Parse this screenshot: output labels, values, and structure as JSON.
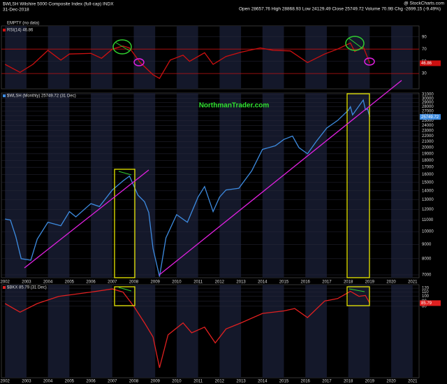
{
  "header": {
    "symbol": "$WLSH Wilshire 5000 Composite Index (full-cap) INDX",
    "date": "31-Dec-2018",
    "stats": "Open 28657.76 High 28868.93 Low 24129.49 Close 25749.72 Volume 70.9B Chg -2699.15 (-9.49%)",
    "credit": "@ StockCharts.com"
  },
  "chart_data": [
    {
      "type": "line",
      "legend": [
        "EMPTY (no data)"
      ],
      "ylim": [
        5,
        108
      ],
      "yticks": [
        90,
        70,
        50,
        30
      ],
      "ref_lines": [
        70,
        30
      ],
      "xlim": [
        2001.83,
        2021.3
      ],
      "last_label": "46.86",
      "x": [
        2002.0,
        2002.7,
        2003.3,
        2004.0,
        2004.6,
        2005.0,
        2006.0,
        2006.5,
        2007.0,
        2007.5,
        2007.8,
        2008.3,
        2008.9,
        2009.2,
        2009.7,
        2010.3,
        2010.6,
        2011.3,
        2011.7,
        2012.3,
        2013.0,
        2013.9,
        2014.5,
        2015.3,
        2016.1,
        2016.9,
        2017.5,
        2018.1,
        2018.3,
        2018.7,
        2019.0
      ],
      "series": [
        {
          "name": "RSI(14) 46.86",
          "color": "#cc1010",
          "values": [
            45,
            32,
            45,
            68,
            52,
            62,
            63,
            55,
            70,
            75,
            72,
            48,
            28,
            22,
            52,
            60,
            50,
            64,
            45,
            58,
            65,
            72,
            68,
            67,
            48,
            62,
            70,
            80,
            66,
            74,
            46.86
          ]
        }
      ]
    },
    {
      "type": "line",
      "log": true,
      "ylim": [
        6840,
        31360
      ],
      "xlim": [
        2001.83,
        2021.3
      ],
      "last_label": "25749.72",
      "yticks": [
        31000,
        30000,
        29000,
        28000,
        27000,
        26000,
        25000,
        24000,
        23000,
        22000,
        21000,
        20000,
        19000,
        18000,
        17000,
        16000,
        15000,
        14000,
        13000,
        12000,
        11000,
        10000,
        9000,
        8000,
        7000
      ],
      "xticks": [
        2002,
        2003,
        2004,
        2005,
        2006,
        2007,
        2008,
        2009,
        2010,
        2011,
        2012,
        2013,
        2014,
        2015,
        2016,
        2017,
        2018,
        2019,
        2020,
        2021
      ],
      "annotation": "NorthmanTrader.com",
      "x": [
        2002.0,
        2002.25,
        2002.5,
        2002.75,
        2003.2,
        2003.5,
        2004.0,
        2004.6,
        2005.0,
        2005.3,
        2006.0,
        2006.4,
        2007.0,
        2007.5,
        2007.8,
        2008.2,
        2008.5,
        2008.7,
        2008.9,
        2009.2,
        2009.5,
        2010.0,
        2010.5,
        2011.0,
        2011.3,
        2011.7,
        2012.0,
        2012.3,
        2012.9,
        2013.5,
        2014.0,
        2014.6,
        2015.0,
        2015.4,
        2015.7,
        2016.1,
        2016.5,
        2017.0,
        2017.5,
        2018.0,
        2018.1,
        2018.2,
        2018.7,
        2018.8,
        2018.9,
        2019.0
      ],
      "series": [
        {
          "name": "$WLSH (Monthly) 25749.72 (31 Dec)",
          "color": "#3d8be0",
          "values": [
            11100,
            11000,
            9600,
            8000,
            7900,
            9400,
            10800,
            10500,
            11800,
            11300,
            12600,
            12300,
            14100,
            15200,
            15800,
            13500,
            12800,
            11700,
            8700,
            6900,
            9500,
            11500,
            10800,
            13300,
            14500,
            11800,
            13300,
            14100,
            14300,
            16500,
            19700,
            20300,
            21400,
            22000,
            20000,
            19000,
            21000,
            23500,
            25000,
            27200,
            28000,
            26200,
            29600,
            27300,
            27500,
            25749.72
          ]
        }
      ]
    },
    {
      "type": "line",
      "log": true,
      "ylim": [
        16,
        130
      ],
      "xlim": [
        2001.83,
        2021.3
      ],
      "last_label": "85.79",
      "yticks": [
        120,
        110,
        100,
        90,
        80
      ],
      "xticks": [
        2002,
        2003,
        2004,
        2005,
        2006,
        2007,
        2008,
        2009,
        2010,
        2011,
        2012,
        2013,
        2014,
        2015,
        2016,
        2017,
        2018,
        2019,
        2020,
        2021
      ],
      "x": [
        2002.0,
        2002.7,
        2003.5,
        2004.5,
        2006.0,
        2007.0,
        2007.5,
        2008.0,
        2008.5,
        2008.9,
        2009.2,
        2009.6,
        2010.3,
        2010.7,
        2011.3,
        2011.8,
        2012.3,
        2013.0,
        2014.0,
        2015.0,
        2015.5,
        2016.1,
        2016.9,
        2017.5,
        2018.1,
        2018.5,
        2018.8,
        2019.0
      ],
      "series": [
        {
          "name": "$BKX 85.79 (31 Dec)",
          "color": "#e02020",
          "values": [
            85,
            70,
            85,
            100,
            110,
            118,
            110,
            80,
            55,
            40,
            20,
            42,
            55,
            44,
            50,
            35,
            48,
            55,
            68,
            72,
            76,
            62,
            90,
            95,
            112,
            100,
            102,
            85.79
          ]
        }
      ]
    }
  ]
}
